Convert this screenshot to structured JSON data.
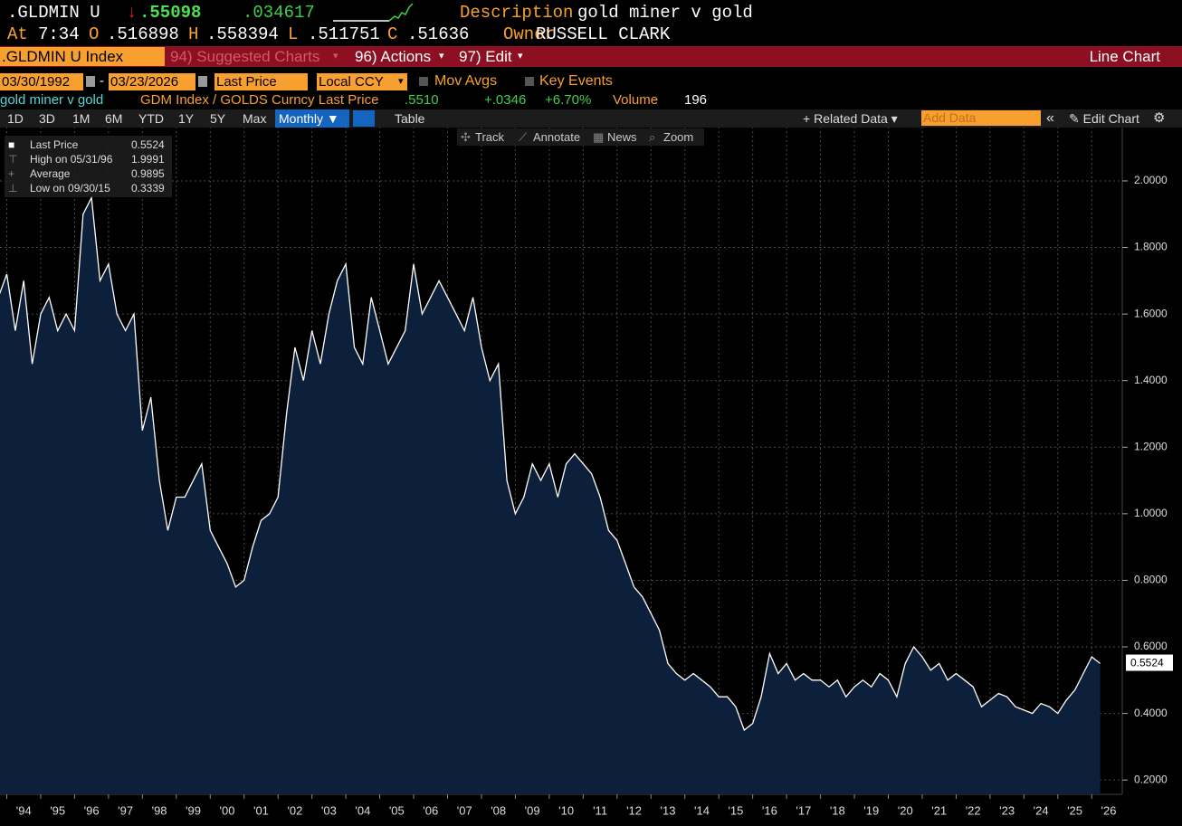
{
  "header": {
    "ticker": ".GLDMIN U",
    "arrow": "↓",
    "last": ".55098",
    "change": ".034617",
    "description_label": "Description",
    "description": "gold miner v gold",
    "at_label": "At",
    "time": "7:34",
    "open_label": "O",
    "open": ".516898",
    "high_label": "H",
    "high": ".558394",
    "low_label": "L",
    "low": ".511751",
    "close_label": "C",
    "close": ".51636",
    "owner_label": "Owner",
    "owner": "RUSSELL CLARK"
  },
  "menu": {
    "security": ".GLDMIN U Index",
    "suggested": "94) Suggested Charts",
    "actions": "96) Actions",
    "edit": "97) Edit",
    "chart_type": "Line Chart"
  },
  "controls": {
    "start_date": "03/30/1992",
    "end_date": "03/23/2026",
    "field": "Last Price",
    "currency": "Local CCY",
    "mov_avgs": "Mov Avgs",
    "key_events": "Key Events"
  },
  "summary": {
    "name": "gold miner v gold",
    "formula": "GDM Index / GOLDS Curncy Last Price",
    "last": ".5510",
    "change": "+.0346",
    "pct_change": "+6.70%",
    "volume_label": "Volume",
    "volume": "196"
  },
  "toolbar": {
    "periods": [
      "1D",
      "3D",
      "1M",
      "6M",
      "YTD",
      "1Y",
      "5Y",
      "Max"
    ],
    "frequency": "Monthly",
    "table": "Table",
    "related_data": "Related Data",
    "add_data": "Add Data",
    "edit_chart": "Edit Chart"
  },
  "tools": [
    "Track",
    "Annotate",
    "News",
    "Zoom"
  ],
  "chart_data": {
    "type": "area",
    "stats": [
      {
        "label": "Last Price",
        "value": "0.5524"
      },
      {
        "label": "High on 05/31/96",
        "value": "1.9991"
      },
      {
        "label": "Average",
        "value": "0.9895"
      },
      {
        "label": "Low on 09/30/15",
        "value": "0.3339"
      }
    ],
    "series": [
      {
        "name": "Last Price",
        "color": "#ffffff",
        "fill": "#0c1f3b",
        "x": [
          1993.75,
          1994,
          1994.25,
          1994.5,
          1994.75,
          1995,
          1995.25,
          1995.5,
          1995.75,
          1996,
          1996.25,
          1996.5,
          1996.75,
          1997,
          1997.25,
          1997.5,
          1997.75,
          1998,
          1998.25,
          1998.5,
          1998.75,
          1999,
          1999.25,
          1999.5,
          1999.75,
          2000,
          2000.25,
          2000.5,
          2000.75,
          2001,
          2001.25,
          2001.5,
          2001.75,
          2002,
          2002.25,
          2002.5,
          2002.75,
          2003,
          2003.25,
          2003.5,
          2003.75,
          2004,
          2004.25,
          2004.5,
          2004.75,
          2005,
          2005.25,
          2005.5,
          2005.75,
          2006,
          2006.25,
          2006.5,
          2006.75,
          2007,
          2007.25,
          2007.5,
          2007.75,
          2008,
          2008.25,
          2008.5,
          2008.75,
          2009,
          2009.25,
          2009.5,
          2009.75,
          2010,
          2010.25,
          2010.5,
          2010.75,
          2011,
          2011.25,
          2011.5,
          2011.75,
          2012,
          2012.25,
          2012.5,
          2012.75,
          2013,
          2013.25,
          2013.5,
          2013.75,
          2014,
          2014.25,
          2014.5,
          2014.75,
          2015,
          2015.25,
          2015.5,
          2015.75,
          2016,
          2016.25,
          2016.5,
          2016.75,
          2017,
          2017.25,
          2017.5,
          2017.75,
          2018,
          2018.25,
          2018.5,
          2018.75,
          2019,
          2019.25,
          2019.5,
          2019.75,
          2020,
          2020.25,
          2020.5,
          2020.75,
          2021,
          2021.25,
          2021.5,
          2021.75,
          2022,
          2022.25,
          2022.5,
          2022.75,
          2023,
          2023.25,
          2023.5,
          2023.75,
          2024,
          2024.25,
          2024.5,
          2024.75,
          2025,
          2025.25,
          2025.5,
          2025.75,
          2026,
          2026.25
        ],
        "values": [
          1.65,
          1.72,
          1.55,
          1.7,
          1.45,
          1.6,
          1.65,
          1.55,
          1.6,
          1.55,
          1.9,
          1.95,
          1.7,
          1.75,
          1.6,
          1.55,
          1.6,
          1.25,
          1.35,
          1.1,
          0.95,
          1.05,
          1.05,
          1.1,
          1.15,
          0.95,
          0.9,
          0.85,
          0.78,
          0.8,
          0.9,
          0.98,
          1.0,
          1.05,
          1.3,
          1.5,
          1.4,
          1.55,
          1.45,
          1.6,
          1.7,
          1.75,
          1.5,
          1.45,
          1.65,
          1.55,
          1.45,
          1.5,
          1.55,
          1.75,
          1.6,
          1.65,
          1.7,
          1.65,
          1.6,
          1.55,
          1.65,
          1.5,
          1.4,
          1.45,
          1.1,
          1.0,
          1.05,
          1.15,
          1.1,
          1.15,
          1.05,
          1.15,
          1.18,
          1.15,
          1.12,
          1.05,
          0.95,
          0.92,
          0.85,
          0.78,
          0.75,
          0.7,
          0.65,
          0.55,
          0.52,
          0.5,
          0.52,
          0.5,
          0.48,
          0.45,
          0.45,
          0.42,
          0.35,
          0.37,
          0.45,
          0.58,
          0.52,
          0.55,
          0.5,
          0.52,
          0.5,
          0.5,
          0.48,
          0.5,
          0.45,
          0.48,
          0.5,
          0.48,
          0.52,
          0.5,
          0.45,
          0.55,
          0.6,
          0.57,
          0.53,
          0.55,
          0.5,
          0.52,
          0.5,
          0.48,
          0.42,
          0.44,
          0.46,
          0.45,
          0.42,
          0.41,
          0.4,
          0.43,
          0.42,
          0.4,
          0.44,
          0.47,
          0.52,
          0.57,
          0.55
        ]
      }
    ],
    "xlim": [
      1993.8,
      2026.9
    ],
    "xticks": [
      {
        "value": 1994,
        "label": "'94"
      },
      {
        "value": 1995,
        "label": "'95"
      },
      {
        "value": 1996,
        "label": "'96"
      },
      {
        "value": 1997,
        "label": "'97"
      },
      {
        "value": 1998,
        "label": "'98"
      },
      {
        "value": 1999,
        "label": "'99"
      },
      {
        "value": 2000,
        "label": "'00"
      },
      {
        "value": 2001,
        "label": "'01"
      },
      {
        "value": 2002,
        "label": "'02"
      },
      {
        "value": 2003,
        "label": "'03"
      },
      {
        "value": 2004,
        "label": "'04"
      },
      {
        "value": 2005,
        "label": "'05"
      },
      {
        "value": 2006,
        "label": "'06"
      },
      {
        "value": 2007,
        "label": "'07"
      },
      {
        "value": 2008,
        "label": "'08"
      },
      {
        "value": 2009,
        "label": "'09"
      },
      {
        "value": 2010,
        "label": "'10"
      },
      {
        "value": 2011,
        "label": "'11"
      },
      {
        "value": 2012,
        "label": "'12"
      },
      {
        "value": 2013,
        "label": "'13"
      },
      {
        "value": 2014,
        "label": "'14"
      },
      {
        "value": 2015,
        "label": "'15"
      },
      {
        "value": 2016,
        "label": "'16"
      },
      {
        "value": 2017,
        "label": "'17"
      },
      {
        "value": 2018,
        "label": "'18"
      },
      {
        "value": 2019,
        "label": "'19"
      },
      {
        "value": 2020,
        "label": "'20"
      },
      {
        "value": 2021,
        "label": "'21"
      },
      {
        "value": 2022,
        "label": "'22"
      },
      {
        "value": 2023,
        "label": "'23"
      },
      {
        "value": 2024,
        "label": "'24"
      },
      {
        "value": 2025,
        "label": "'25"
      },
      {
        "value": 2026,
        "label": "'26"
      }
    ],
    "ylim": [
      0.157,
      2.163
    ],
    "yticks": [
      {
        "value": 0.2,
        "label": "0.2000"
      },
      {
        "value": 0.4,
        "label": "0.4000"
      },
      {
        "value": 0.6,
        "label": "0.6000"
      },
      {
        "value": 0.8,
        "label": "0.8000"
      },
      {
        "value": 1.0,
        "label": "1.0000"
      },
      {
        "value": 1.2,
        "label": "1.2000"
      },
      {
        "value": 1.4,
        "label": "1.4000"
      },
      {
        "value": 1.6,
        "label": "1.6000"
      },
      {
        "value": 1.8,
        "label": "1.8000"
      },
      {
        "value": 2.0,
        "label": "2.0000"
      }
    ],
    "grid": true
  }
}
